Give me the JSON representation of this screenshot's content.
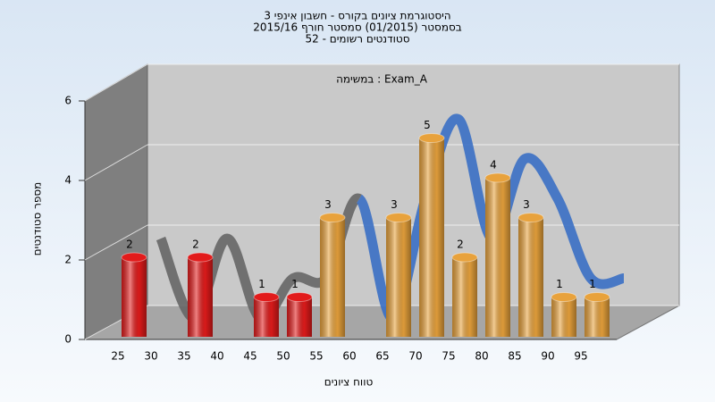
{
  "chart_data": {
    "type": "bar",
    "title_lines": [
      "היסטוגרמת ציונים בקורס - חשבון אינפי 3",
      "בסמסטר  (01/2015)  סמסטר חורף 2015/16",
      "סטודנטים רשומים - 52"
    ],
    "subtitle": "במשימה : Exam_A",
    "y_label": "מספר סטודנטים",
    "x_label": "טווח ציונים",
    "categories": [
      "25",
      "30",
      "35",
      "40",
      "45",
      "50",
      "55",
      "60",
      "65",
      "70",
      "75",
      "80",
      "85",
      "90",
      "95"
    ],
    "values": [
      2,
      0,
      2,
      0,
      1,
      1,
      3,
      0,
      3,
      5,
      2,
      4,
      3,
      1,
      1
    ],
    "colors": [
      "#e21b1b",
      "#e21b1b",
      "#e21b1b",
      "#e21b1b",
      "#e21b1b",
      "#e21b1b",
      "#e8a23c",
      "#e8a23c",
      "#e8a23c",
      "#e8a23c",
      "#e8a23c",
      "#e8a23c",
      "#e8a23c",
      "#e8a23c",
      "#e8a23c"
    ],
    "curve_colors": [
      "#666666",
      "#3a6fc4"
    ],
    "ylim": [
      0,
      6
    ],
    "yticks": [
      0,
      2,
      4,
      6
    ],
    "grid": true
  }
}
